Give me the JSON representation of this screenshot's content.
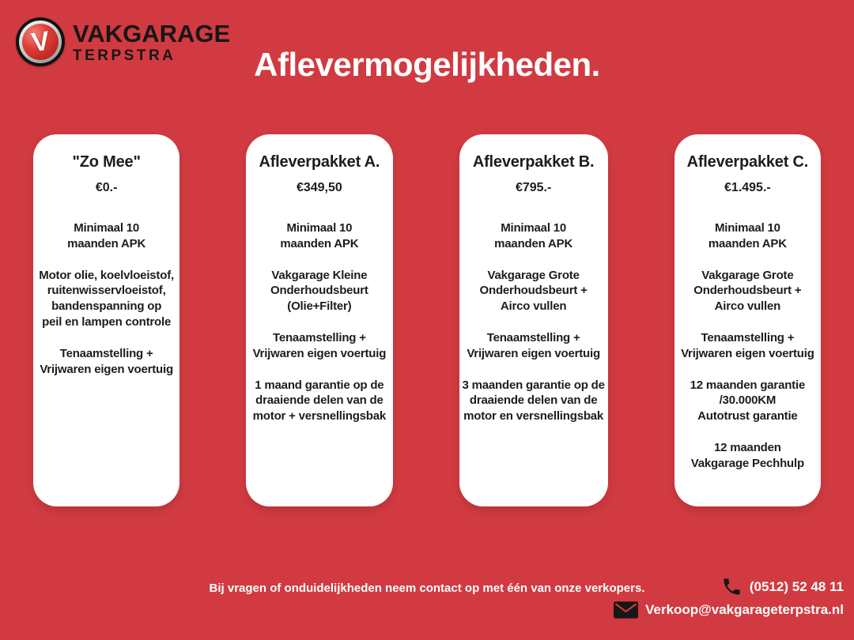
{
  "brand": {
    "logo_letter": "V",
    "name": "VAKGARAGE",
    "subname": "TERPSTRA"
  },
  "header": {
    "title": "Aflevermogelijkheden."
  },
  "packages": [
    {
      "title": "\"Zo Mee\"",
      "price": "€0.-",
      "items": [
        "Minimaal 10\nmaanden APK",
        "Motor olie, koelvloeistof,\nruitenwisservloeistof,\nbandenspanning op\npeil en lampen controle",
        "Tenaamstelling +\nVrijwaren eigen voertuig"
      ]
    },
    {
      "title": "Afleverpakket A.",
      "price": "€349,50",
      "items": [
        "Minimaal 10\nmaanden APK",
        "Vakgarage Kleine\nOnderhoudsbeurt\n(Olie+Filter)",
        "Tenaamstelling +\nVrijwaren eigen voertuig",
        "1 maand garantie op de\ndraaiende delen van de\nmotor + versnellingsbak"
      ]
    },
    {
      "title": "Afleverpakket B.",
      "price": "€795.-",
      "items": [
        "Minimaal 10\nmaanden APK",
        "Vakgarage Grote\nOnderhoudsbeurt +\nAirco vullen",
        "Tenaamstelling +\nVrijwaren eigen voertuig",
        "3 maanden garantie op de\ndraaiende delen van de\nmotor en versnellingsbak"
      ]
    },
    {
      "title": "Afleverpakket C.",
      "price": "€1.495.-",
      "items": [
        "Minimaal 10\nmaanden APK",
        "Vakgarage Grote\nOnderhoudsbeurt +\nAirco vullen",
        "Tenaamstelling +\nVrijwaren eigen voertuig",
        "12 maanden garantie\n/30.000KM\nAutotrust garantie",
        "12 maanden\nVakgarage Pechhulp"
      ]
    }
  ],
  "footer": {
    "note": "Bij vragen of onduidelijkheden neem contact op met één van onze verkopers.",
    "phone": "(0512) 52 48 11",
    "email": "Verkoop@vakgarageterpstra.nl",
    "icons": {
      "phone": "phone-icon",
      "email": "envelope-icon"
    }
  },
  "colors": {
    "background": "#D13A40",
    "card": "#FFFFFF",
    "text_dark": "#1D1D1B",
    "text_light": "#FFFFFF",
    "logo_red": "#C92A2B",
    "icon_black": "#161616"
  }
}
